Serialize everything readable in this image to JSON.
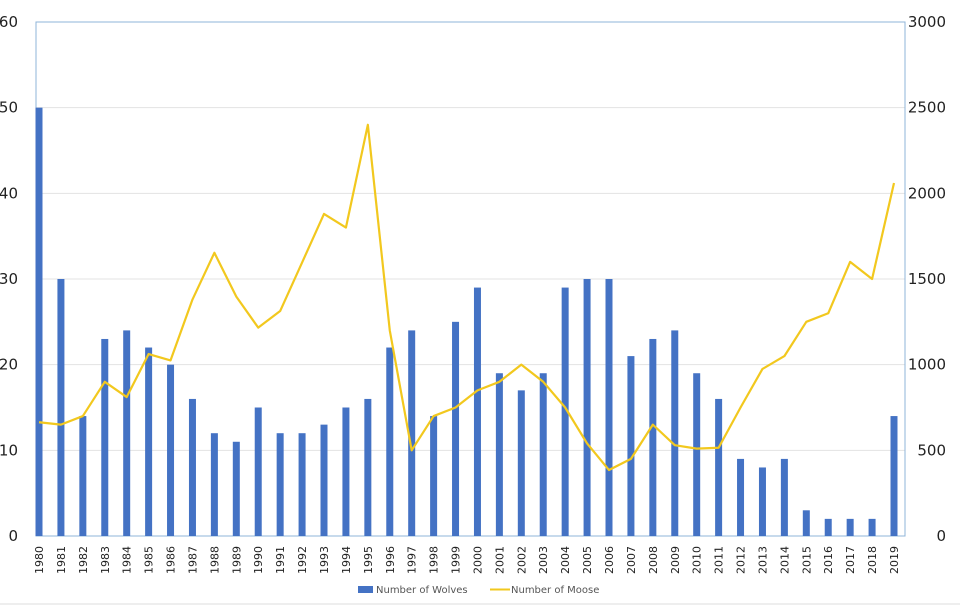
{
  "chart_data": {
    "type": "bar+line",
    "title": "",
    "categories": [
      "1980",
      "1981",
      "1982",
      "1983",
      "1984",
      "1985",
      "1986",
      "1987",
      "1988",
      "1989",
      "1990",
      "1991",
      "1992",
      "1993",
      "1994",
      "1995",
      "1996",
      "1997",
      "1998",
      "1999",
      "2000",
      "2001",
      "2002",
      "2003",
      "2004",
      "2005",
      "2006",
      "2007",
      "2008",
      "2009",
      "2010",
      "2011",
      "2012",
      "2013",
      "2014",
      "2015",
      "2016",
      "2017",
      "2018",
      "2019"
    ],
    "series": [
      {
        "name": "Number of Wolves",
        "type": "bar",
        "axis": "left",
        "color": "#4472C4",
        "values": [
          50,
          30,
          14,
          23,
          24,
          22,
          20,
          16,
          12,
          11,
          15,
          12,
          12,
          13,
          15,
          16,
          22,
          24,
          14,
          25,
          29,
          19,
          17,
          19,
          29,
          30,
          30,
          21,
          23,
          24,
          19,
          16,
          9,
          8,
          9,
          3,
          2,
          2,
          2,
          14
        ]
      },
      {
        "name": "Number of Moose",
        "type": "line",
        "axis": "right",
        "color": "#F2C81E",
        "values": [
          664,
          650,
          700,
          900,
          811,
          1062,
          1025,
          1380,
          1653,
          1397,
          1216,
          1313,
          1596,
          1880,
          1800,
          2400,
          1200,
          500,
          700,
          750,
          850,
          900,
          1000,
          900,
          750,
          540,
          385,
          450,
          650,
          530,
          510,
          515,
          750,
          975,
          1050,
          1250,
          1300,
          1600,
          1500,
          2060
        ]
      }
    ],
    "y_left": {
      "range": [
        0,
        60
      ],
      "ticks": [
        "0",
        "10",
        "20",
        "30",
        "40",
        "50",
        "60"
      ]
    },
    "y_right": {
      "range": [
        0,
        3000
      ],
      "ticks": [
        "0",
        "500",
        "1000",
        "1500",
        "2000",
        "2500",
        "3000"
      ]
    },
    "grid": true,
    "legend": "bottom"
  }
}
